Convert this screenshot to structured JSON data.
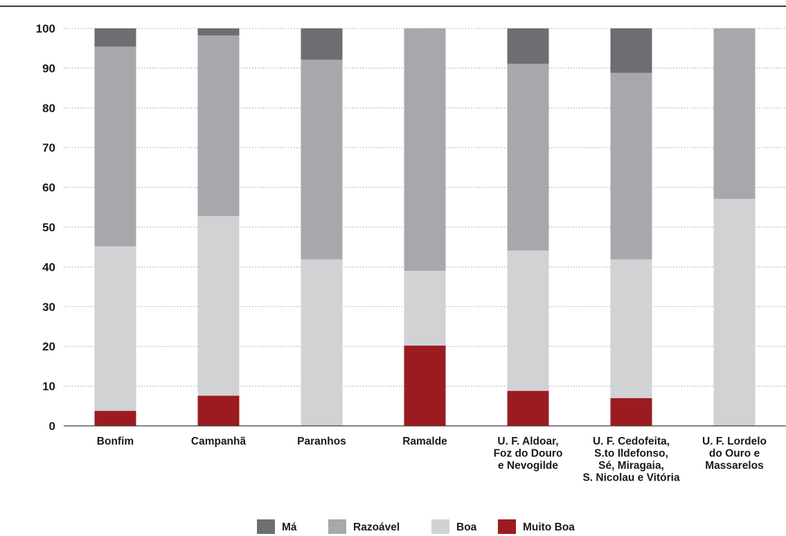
{
  "chart_data": {
    "type": "bar",
    "stacked": true,
    "title": "",
    "xlabel": "",
    "ylabel": "",
    "ylim": [
      0,
      100
    ],
    "yticks": [
      0,
      10,
      20,
      30,
      40,
      50,
      60,
      70,
      80,
      90,
      100
    ],
    "grid": "horizontal dotted",
    "legend_position": "bottom-center",
    "categories": [
      [
        "Bonfim"
      ],
      [
        "Campanhã"
      ],
      [
        "Paranhos"
      ],
      [
        "Ramalde"
      ],
      [
        "U. F. Aldoar,",
        "Foz do Douro",
        "e Nevogilde"
      ],
      [
        "U. F. Cedofeita,",
        "S.to Ildefonso,",
        "Sé, Miragaia,",
        "S. Nicolau e Vitória"
      ],
      [
        "U. F. Lordelo",
        "do Ouro e",
        "Massarelos"
      ]
    ],
    "series": [
      {
        "name": "Muito Boa",
        "color": "#9b1b20",
        "values": [
          3.8,
          7.6,
          0,
          20.2,
          8.8,
          7.0,
          0
        ]
      },
      {
        "name": "Boa",
        "color": "#d1d2d4",
        "values": [
          41.4,
          45.2,
          41.9,
          18.8,
          35.3,
          34.9,
          57.1
        ]
      },
      {
        "name": "Razoável",
        "color": "#a7a8ab",
        "values": [
          50.2,
          45.4,
          50.2,
          61.0,
          47.0,
          46.9,
          42.9
        ]
      },
      {
        "name": "Má",
        "color": "#6d6e71",
        "values": [
          4.6,
          1.8,
          7.9,
          0,
          8.9,
          11.2,
          0
        ]
      }
    ],
    "legend_order": [
      "Má",
      "Razoável",
      "Boa",
      "Muito Boa"
    ]
  }
}
